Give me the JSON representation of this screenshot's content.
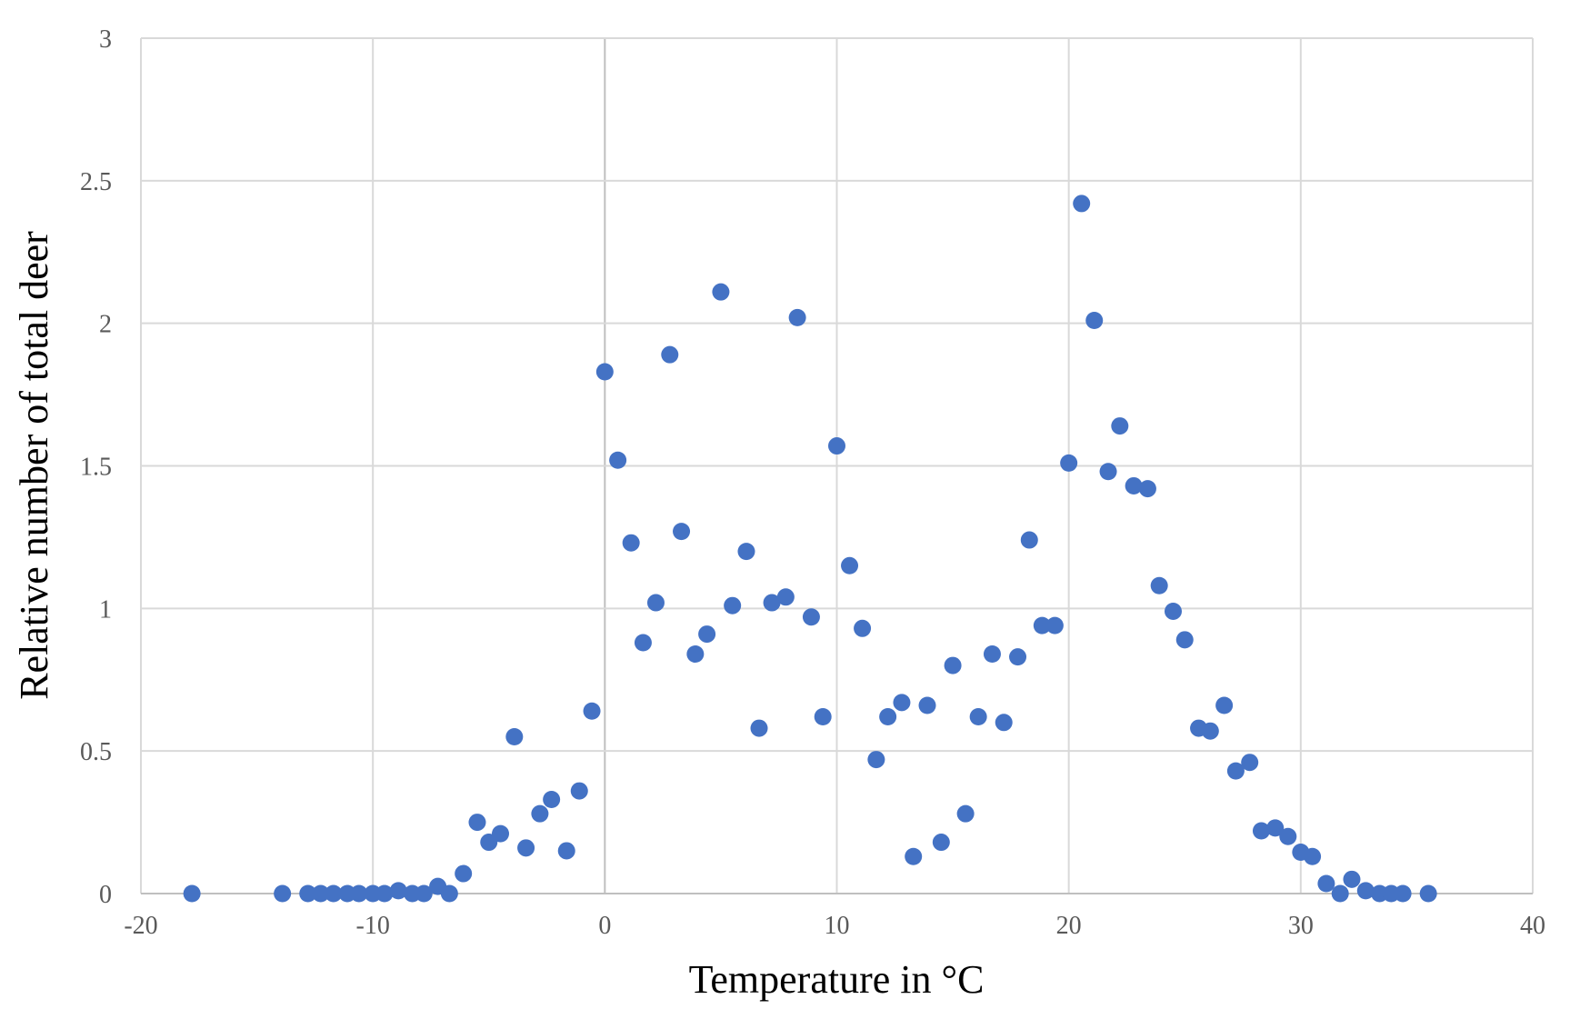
{
  "chart_data": {
    "type": "scatter",
    "title": "",
    "xlabel": "Temperature in °C",
    "ylabel": "Relative number of total deer",
    "xlim": [
      -20,
      40
    ],
    "ylim": [
      0,
      3
    ],
    "xticks": [
      -20,
      -10,
      0,
      10,
      20,
      30,
      40
    ],
    "yticks": [
      0,
      0.5,
      1,
      1.5,
      2,
      2.5,
      3
    ],
    "xtick_labels": [
      "-20",
      "-10",
      "0",
      "10",
      "20",
      "30",
      "40"
    ],
    "ytick_labels": [
      "0",
      "0.5",
      "1",
      "1.5",
      "2",
      "2.5",
      "3"
    ],
    "grid": true,
    "marker_color": "#4472C4",
    "points": [
      [
        -17.8,
        0
      ],
      [
        -13.9,
        0
      ],
      [
        -12.8,
        0
      ],
      [
        -12.25,
        0
      ],
      [
        -11.7,
        0
      ],
      [
        -11.1,
        0
      ],
      [
        -10.6,
        0
      ],
      [
        -10.0,
        0
      ],
      [
        -9.5,
        0
      ],
      [
        -8.9,
        0.01
      ],
      [
        -8.3,
        0
      ],
      [
        -7.8,
        0
      ],
      [
        -7.2,
        0.025
      ],
      [
        -6.7,
        0
      ],
      [
        -6.1,
        0.07
      ],
      [
        -5.5,
        0.25
      ],
      [
        -5.0,
        0.18
      ],
      [
        -4.5,
        0.21
      ],
      [
        -3.9,
        0.55
      ],
      [
        -3.4,
        0.16
      ],
      [
        -2.8,
        0.28
      ],
      [
        -2.3,
        0.33
      ],
      [
        -1.65,
        0.15
      ],
      [
        -1.1,
        0.36
      ],
      [
        -0.56,
        0.64
      ],
      [
        0,
        1.83
      ],
      [
        0.56,
        1.52
      ],
      [
        1.13,
        1.23
      ],
      [
        1.65,
        0.88
      ],
      [
        2.2,
        1.02
      ],
      [
        2.8,
        1.89
      ],
      [
        3.3,
        1.27
      ],
      [
        3.9,
        0.84
      ],
      [
        4.4,
        0.91
      ],
      [
        5.0,
        2.11
      ],
      [
        5.5,
        1.01
      ],
      [
        6.1,
        1.2
      ],
      [
        6.65,
        0.58
      ],
      [
        7.2,
        1.02
      ],
      [
        7.8,
        1.04
      ],
      [
        8.3,
        2.02
      ],
      [
        8.9,
        0.97
      ],
      [
        9.4,
        0.62
      ],
      [
        10.0,
        1.57
      ],
      [
        10.55,
        1.15
      ],
      [
        11.1,
        0.93
      ],
      [
        11.7,
        0.47
      ],
      [
        12.2,
        0.62
      ],
      [
        12.8,
        0.67
      ],
      [
        13.3,
        0.13
      ],
      [
        13.9,
        0.66
      ],
      [
        14.5,
        0.18
      ],
      [
        15.0,
        0.8
      ],
      [
        15.55,
        0.28
      ],
      [
        16.1,
        0.62
      ],
      [
        16.7,
        0.84
      ],
      [
        17.2,
        0.6
      ],
      [
        17.8,
        0.83
      ],
      [
        18.3,
        1.24
      ],
      [
        18.85,
        0.94
      ],
      [
        19.4,
        0.94
      ],
      [
        20.0,
        1.51
      ],
      [
        20.55,
        2.42
      ],
      [
        21.1,
        2.01
      ],
      [
        21.7,
        1.48
      ],
      [
        22.2,
        1.64
      ],
      [
        22.8,
        1.43
      ],
      [
        23.4,
        1.42
      ],
      [
        23.9,
        1.08
      ],
      [
        24.5,
        0.99
      ],
      [
        25.0,
        0.89
      ],
      [
        25.6,
        0.58
      ],
      [
        26.1,
        0.57
      ],
      [
        26.7,
        0.66
      ],
      [
        27.2,
        0.43
      ],
      [
        27.8,
        0.46
      ],
      [
        28.3,
        0.22
      ],
      [
        28.9,
        0.23
      ],
      [
        29.45,
        0.2
      ],
      [
        30.0,
        0.145
      ],
      [
        30.5,
        0.13
      ],
      [
        31.1,
        0.035
      ],
      [
        31.7,
        0
      ],
      [
        32.2,
        0.05
      ],
      [
        32.8,
        0.01
      ],
      [
        33.4,
        0
      ],
      [
        33.9,
        0
      ],
      [
        34.4,
        0
      ],
      [
        35.5,
        0
      ]
    ]
  }
}
